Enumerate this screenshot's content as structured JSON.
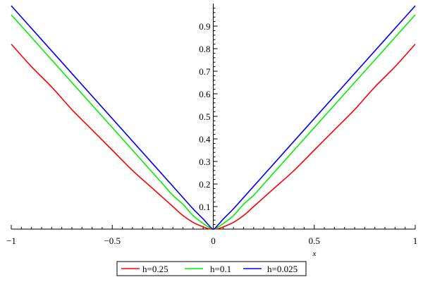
{
  "chart_data": {
    "type": "line",
    "title": "",
    "xlabel": "x",
    "ylabel": "",
    "xlim": [
      -1,
      1
    ],
    "ylim": [
      0,
      1
    ],
    "grid": false,
    "legend_position": "bottom",
    "x_ticks": [
      -1,
      -0.5,
      0,
      0.5,
      1
    ],
    "x_tick_labels": [
      "−1",
      "−0.5",
      "0",
      "0.5",
      "1"
    ],
    "y_ticks": [
      0.1,
      0.2,
      0.3,
      0.4,
      0.5,
      0.6,
      0.7,
      0.8,
      0.9
    ],
    "y_tick_labels": [
      "0.1",
      "0.2",
      "0.3",
      "0.4",
      "0.5",
      "0.6",
      "0.7",
      "0.8",
      "0.9"
    ],
    "x": [
      -1,
      -0.9,
      -0.8,
      -0.7,
      -0.6,
      -0.5,
      -0.4,
      -0.3,
      -0.25,
      -0.2,
      -0.15,
      -0.1,
      -0.05,
      -0.025,
      0,
      0.025,
      0.05,
      0.1,
      0.15,
      0.2,
      0.25,
      0.3,
      0.4,
      0.5,
      0.6,
      0.7,
      0.8,
      0.9,
      1
    ],
    "series": [
      {
        "name": "h=0.25",
        "color": "#ff0000",
        "values": [
          0.82,
          0.72,
          0.63,
          0.53,
          0.44,
          0.35,
          0.26,
          0.18,
          0.14,
          0.1,
          0.06,
          0.03,
          0.01,
          0.002,
          0,
          0.002,
          0.01,
          0.03,
          0.06,
          0.1,
          0.14,
          0.18,
          0.26,
          0.35,
          0.44,
          0.53,
          0.63,
          0.72,
          0.82
        ]
      },
      {
        "name": "h=0.1",
        "color": "#00ee00",
        "values": [
          0.95,
          0.85,
          0.75,
          0.65,
          0.55,
          0.45,
          0.35,
          0.25,
          0.2,
          0.15,
          0.11,
          0.06,
          0.025,
          0.01,
          0,
          0.01,
          0.025,
          0.06,
          0.11,
          0.15,
          0.2,
          0.25,
          0.35,
          0.45,
          0.55,
          0.65,
          0.75,
          0.85,
          0.95
        ]
      },
      {
        "name": "h=0.025",
        "color": "#0000ff",
        "values": [
          0.99,
          0.89,
          0.79,
          0.69,
          0.59,
          0.49,
          0.39,
          0.29,
          0.24,
          0.19,
          0.14,
          0.09,
          0.045,
          0.02,
          0,
          0.02,
          0.045,
          0.09,
          0.14,
          0.19,
          0.24,
          0.29,
          0.39,
          0.49,
          0.59,
          0.69,
          0.79,
          0.89,
          0.99
        ]
      }
    ]
  }
}
